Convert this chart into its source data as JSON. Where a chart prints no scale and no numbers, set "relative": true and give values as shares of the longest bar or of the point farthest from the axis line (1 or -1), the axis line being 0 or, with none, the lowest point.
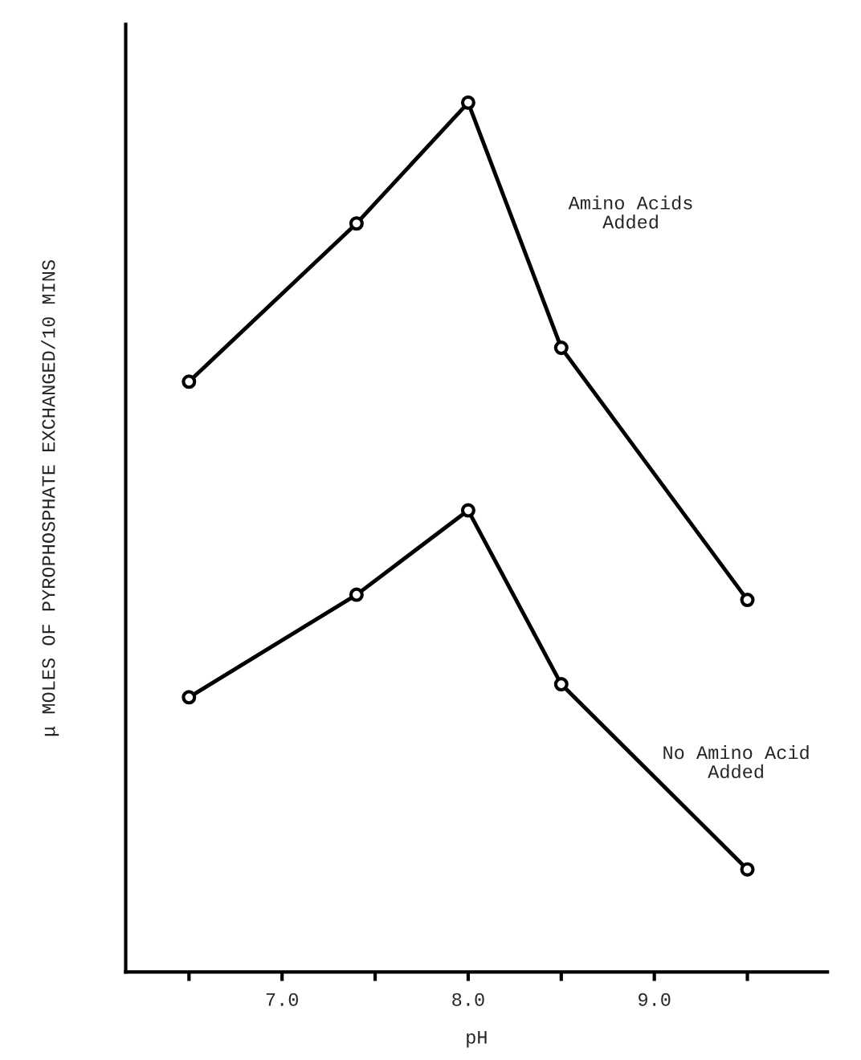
{
  "chart_data": {
    "type": "line",
    "relative": true,
    "xlabel": "pH",
    "ylabel": "μ MOLES OF PYROPHOSPHATE EXCHANGED/10 MINS",
    "x": [
      6.5,
      7.4,
      8.0,
      8.5,
      9.5
    ],
    "xlim": [
      6.16,
      9.93
    ],
    "xticks": [
      {
        "value": 6.5,
        "label": null
      },
      {
        "value": 7.0,
        "label": "7.0"
      },
      {
        "value": 7.5,
        "label": null
      },
      {
        "value": 8.0,
        "label": "8.0"
      },
      {
        "value": 8.5,
        "label": null
      },
      {
        "value": 9.0,
        "label": "9.0"
      },
      {
        "value": 9.5,
        "label": null
      }
    ],
    "marker": "circle",
    "line_style": "solid",
    "grid": false,
    "legend": false,
    "tick_labels": "x",
    "series": [
      {
        "name": "Amino Acids\nAdded",
        "color": "#000000",
        "values": [
          0.679,
          0.861,
          1.0,
          0.718,
          0.428
        ]
      },
      {
        "name": "No Amino Acid\nAdded",
        "color": "#000000",
        "values": [
          0.316,
          0.434,
          0.531,
          0.331,
          0.118
        ]
      }
    ]
  }
}
